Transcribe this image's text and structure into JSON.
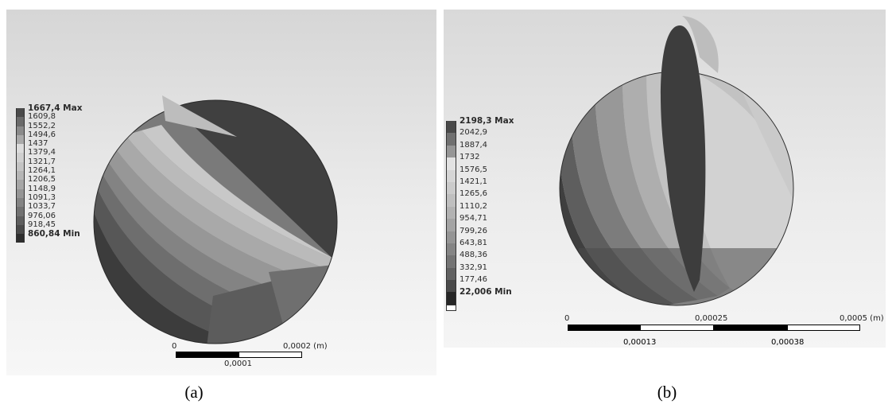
{
  "panel_a": {
    "legend": [
      "1667,4 Max",
      "1609,8",
      "1552,2",
      "1494,6",
      "1437",
      "1379,4",
      "1321,7",
      "1264,1",
      "1206,5",
      "1148,9",
      "1091,3",
      "1033,7",
      "976,06",
      "918,45",
      "860,84 Min"
    ],
    "scale": {
      "left": "0",
      "right": "0,0002 (m)",
      "mid": "0,0001"
    },
    "caption": "(a)"
  },
  "panel_b": {
    "legend": [
      "2198,3 Max",
      "2042,9",
      "1887,4",
      "1732",
      "1576,5",
      "1421,1",
      "1265,6",
      "1110,2",
      "954,71",
      "799,26",
      "643,81",
      "488,36",
      "332,91",
      "177,46",
      "22,006 Min"
    ],
    "scale": {
      "left": "0",
      "center": "0,00025",
      "right": "0,0005 (m)",
      "quarter": "0,00013",
      "three_quarter": "0,00038"
    },
    "caption": "(b)"
  },
  "colors": {
    "dark_band": "#3a3a3a",
    "light_band": "#d8d8d8",
    "background": "#e6e6e6"
  }
}
